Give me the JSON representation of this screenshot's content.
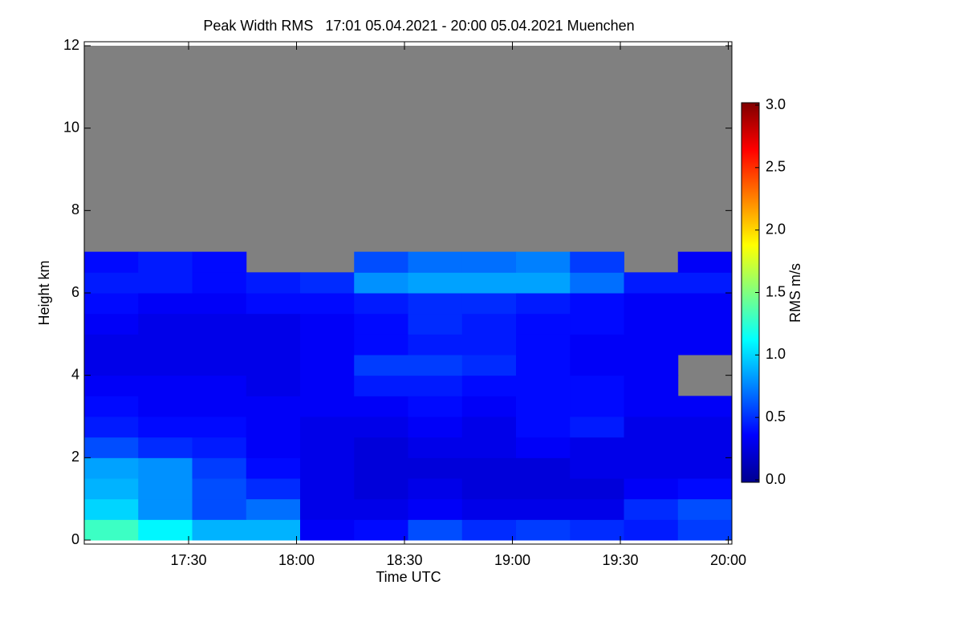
{
  "chart_data": {
    "type": "heatmap",
    "title": "Peak Width RMS   17:01 05.04.2021 - 20:00 05.04.2021 Muenchen",
    "xlabel": "Time UTC",
    "ylabel": "Height km",
    "colorbar_label": "RMS m/s",
    "xlim": [
      1021,
      1201
    ],
    "xticks": [
      {
        "value": 1050,
        "label": "17:30"
      },
      {
        "value": 1080,
        "label": "18:00"
      },
      {
        "value": 1110,
        "label": "18:30"
      },
      {
        "value": 1140,
        "label": "19:00"
      },
      {
        "value": 1170,
        "label": "19:30"
      },
      {
        "value": 1200,
        "label": "20:00"
      }
    ],
    "ylim": [
      0,
      12
    ],
    "yticks": [
      0,
      2,
      4,
      6,
      8,
      10,
      12
    ],
    "clim": [
      0,
      3
    ],
    "cticks": [
      {
        "value": 0,
        "label": "0.0"
      },
      0.5,
      {
        "value": 1,
        "label": "1.0"
      },
      1.5,
      {
        "value": 2,
        "label": "2.0"
      },
      2.5,
      {
        "value": 3,
        "label": "3.0"
      }
    ],
    "colormap": [
      "#00008f",
      "#0000ff",
      "#0080ff",
      "#00ffff",
      "#80ff80",
      "#ffff00",
      "#ff8000",
      "#ff0000",
      "#800000"
    ],
    "missing_color": "#808080",
    "xbins": [
      1021,
      1036,
      1051,
      1066,
      1081,
      1096,
      1111,
      1126,
      1141,
      1156,
      1171,
      1186,
      1201
    ],
    "ybins": [
      0,
      0.5,
      1,
      1.5,
      2,
      2.5,
      3,
      3.5,
      4,
      4.5,
      5,
      5.5,
      6,
      6.5,
      7
    ],
    "z": [
      [
        1.3,
        1.1,
        0.9,
        0.9,
        0.35,
        0.4,
        0.6,
        0.5,
        0.55,
        0.5,
        0.45,
        0.55
      ],
      [
        1.0,
        0.8,
        0.6,
        0.7,
        0.3,
        0.3,
        0.35,
        0.3,
        0.3,
        0.3,
        0.5,
        0.6
      ],
      [
        0.9,
        0.8,
        0.6,
        0.5,
        0.3,
        0.25,
        0.3,
        0.25,
        0.25,
        0.25,
        0.35,
        0.4
      ],
      [
        0.85,
        0.8,
        0.55,
        0.4,
        0.3,
        0.25,
        0.25,
        0.25,
        0.25,
        0.3,
        0.3,
        0.3
      ],
      [
        0.6,
        0.5,
        0.45,
        0.35,
        0.3,
        0.25,
        0.3,
        0.3,
        0.35,
        0.3,
        0.3,
        0.3
      ],
      [
        0.45,
        0.4,
        0.4,
        0.35,
        0.3,
        0.3,
        0.35,
        0.3,
        0.4,
        0.45,
        0.3,
        0.3
      ],
      [
        0.4,
        0.35,
        0.35,
        0.35,
        0.35,
        0.35,
        0.4,
        0.35,
        0.4,
        0.4,
        0.35,
        0.35
      ],
      [
        0.35,
        0.35,
        0.35,
        0.3,
        0.35,
        0.45,
        0.45,
        0.4,
        0.4,
        0.4,
        0.35,
        null
      ],
      [
        0.3,
        0.3,
        0.3,
        0.3,
        0.35,
        0.55,
        0.55,
        0.5,
        0.4,
        0.35,
        0.35,
        null
      ],
      [
        0.3,
        0.3,
        0.3,
        0.3,
        0.35,
        0.4,
        0.45,
        0.45,
        0.4,
        0.35,
        0.35,
        0.35
      ],
      [
        0.35,
        0.3,
        0.3,
        0.3,
        0.35,
        0.4,
        0.5,
        0.45,
        0.4,
        0.4,
        0.35,
        0.35
      ],
      [
        0.4,
        0.35,
        0.35,
        0.4,
        0.4,
        0.45,
        0.5,
        0.5,
        0.45,
        0.4,
        0.35,
        0.35
      ],
      [
        0.45,
        0.45,
        0.4,
        0.45,
        0.5,
        0.8,
        0.85,
        0.85,
        0.85,
        0.7,
        0.45,
        0.45
      ],
      [
        0.4,
        0.45,
        0.4,
        null,
        null,
        0.6,
        0.7,
        0.7,
        0.75,
        0.55,
        null,
        0.35
      ]
    ]
  }
}
